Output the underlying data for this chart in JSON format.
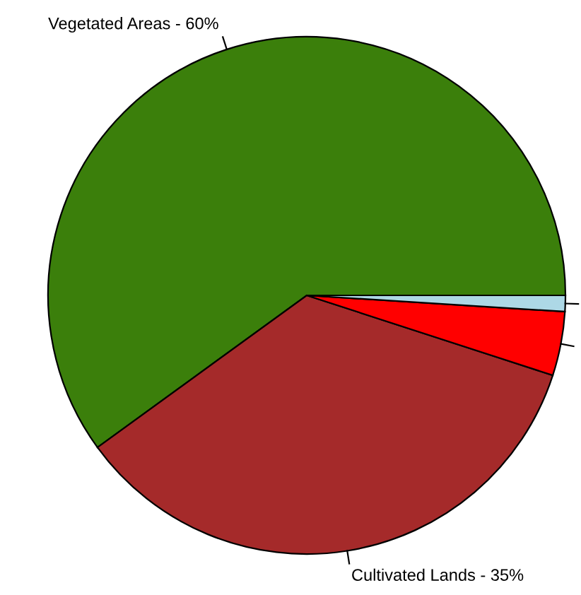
{
  "chart_data": {
    "type": "pie",
    "categories": [
      "Vegetated Areas - 60%",
      "Cultivated Lands - 35%",
      null,
      null
    ],
    "values": [
      60,
      35,
      4,
      1
    ],
    "colors": [
      "#3b7f0b",
      "#a52a2a",
      "#ff0000",
      "#add8e6"
    ]
  }
}
